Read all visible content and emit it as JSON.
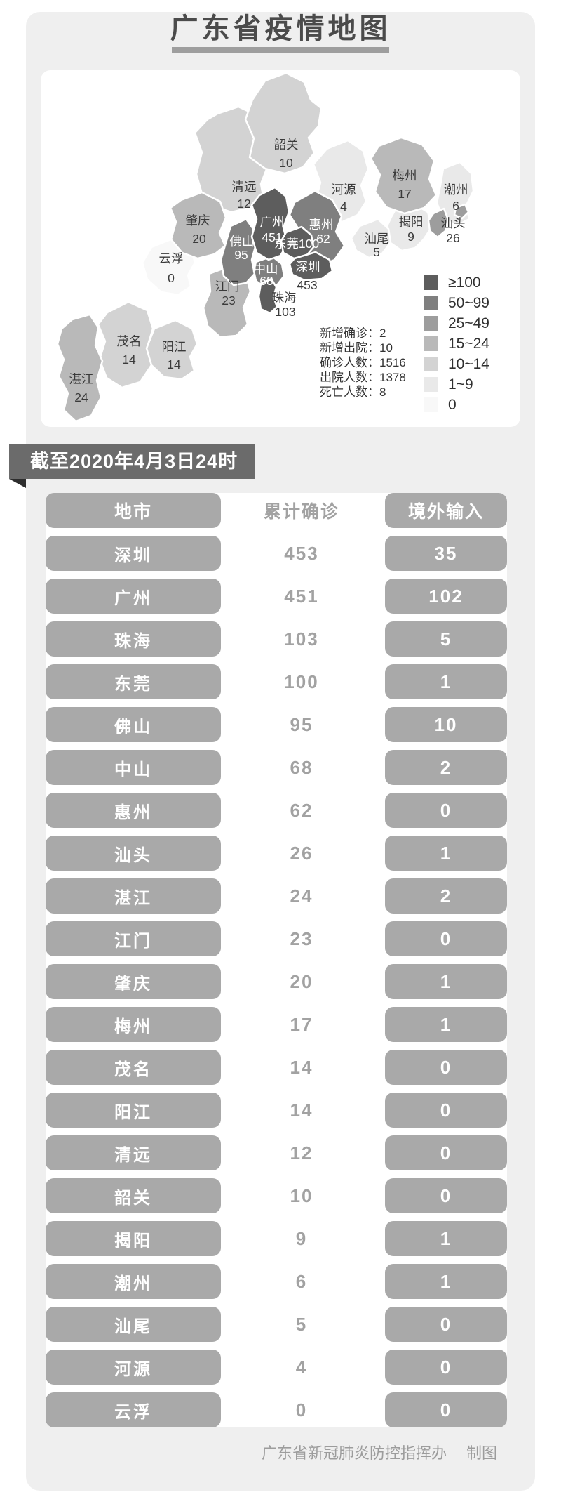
{
  "page": {
    "title": "广东省疫情地图",
    "footer_credit": "广东省新冠肺炎防控指挥办",
    "footer_suffix": "制图"
  },
  "banner": {
    "text": "截至2020年4月3日24时"
  },
  "map": {
    "stats_lines": [
      "新增确诊：2",
      "新增出院：10",
      "确诊人数：1516",
      "出院人数：1378",
      "死亡人数：8"
    ],
    "legend": [
      {
        "label": "≥100",
        "color": "#5d5d5d"
      },
      {
        "label": "50~99",
        "color": "#7f7f7f"
      },
      {
        "label": "25~49",
        "color": "#9d9d9d"
      },
      {
        "label": "15~24",
        "color": "#b9b9b9"
      },
      {
        "label": "10~14",
        "color": "#d3d3d3"
      },
      {
        "label": "1~9",
        "color": "#e9e9e9"
      },
      {
        "label": "0",
        "color": "#f8f8f8"
      }
    ],
    "regions": [
      {
        "name": "云浮",
        "value": "0",
        "bucket": 6
      },
      {
        "name": "河源",
        "value": "4",
        "bucket": 5
      },
      {
        "name": "潮州",
        "value": "6",
        "bucket": 5
      },
      {
        "name": "揭阳",
        "value": "9",
        "bucket": 5
      },
      {
        "name": "汕尾",
        "value": "5",
        "bucket": 5
      },
      {
        "name": "茂名",
        "value": "14",
        "bucket": 4
      },
      {
        "name": "阳江",
        "value": "14",
        "bucket": 4
      },
      {
        "name": "清远",
        "value": "12",
        "bucket": 4
      },
      {
        "name": "韶关",
        "value": "10",
        "bucket": 4
      },
      {
        "name": "湛江",
        "value": "24",
        "bucket": 3
      },
      {
        "name": "江门",
        "value": "23",
        "bucket": 3
      },
      {
        "name": "肇庆",
        "value": "20",
        "bucket": 3
      },
      {
        "name": "梅州",
        "value": "17",
        "bucket": 3
      },
      {
        "name": "汕头",
        "value": "26",
        "bucket": 2
      },
      {
        "name": "惠州",
        "value": "62",
        "bucket": 1
      },
      {
        "name": "佛山",
        "value": "95",
        "bucket": 1
      },
      {
        "name": "中山",
        "value": "68",
        "bucket": 1
      },
      {
        "name": "广州",
        "value": "451",
        "bucket": 0
      },
      {
        "name": "东莞",
        "value": "100",
        "bucket": 0
      },
      {
        "name": "深圳",
        "value": "453",
        "bucket": 0
      },
      {
        "name": "珠海",
        "value": "103",
        "bucket": 0
      }
    ]
  },
  "table": {
    "headers": [
      "地市",
      "累计确诊",
      "境外输入"
    ],
    "rows": [
      {
        "city": "深圳",
        "confirmed": "453",
        "imported": "35"
      },
      {
        "city": "广州",
        "confirmed": "451",
        "imported": "102"
      },
      {
        "city": "珠海",
        "confirmed": "103",
        "imported": "5"
      },
      {
        "city": "东莞",
        "confirmed": "100",
        "imported": "1"
      },
      {
        "city": "佛山",
        "confirmed": "95",
        "imported": "10"
      },
      {
        "city": "中山",
        "confirmed": "68",
        "imported": "2"
      },
      {
        "city": "惠州",
        "confirmed": "62",
        "imported": "0"
      },
      {
        "city": "汕头",
        "confirmed": "26",
        "imported": "1"
      },
      {
        "city": "湛江",
        "confirmed": "24",
        "imported": "2"
      },
      {
        "city": "江门",
        "confirmed": "23",
        "imported": "0"
      },
      {
        "city": "肇庆",
        "confirmed": "20",
        "imported": "1"
      },
      {
        "city": "梅州",
        "confirmed": "17",
        "imported": "1"
      },
      {
        "city": "茂名",
        "confirmed": "14",
        "imported": "0"
      },
      {
        "city": "阳江",
        "confirmed": "14",
        "imported": "0"
      },
      {
        "city": "清远",
        "confirmed": "12",
        "imported": "0"
      },
      {
        "city": "韶关",
        "confirmed": "10",
        "imported": "0"
      },
      {
        "city": "揭阳",
        "confirmed": "9",
        "imported": "1"
      },
      {
        "city": "潮州",
        "confirmed": "6",
        "imported": "1"
      },
      {
        "city": "汕尾",
        "confirmed": "5",
        "imported": "0"
      },
      {
        "city": "河源",
        "confirmed": "4",
        "imported": "0"
      },
      {
        "city": "云浮",
        "confirmed": "0",
        "imported": "0"
      }
    ]
  },
  "chart_data": [
    {
      "type": "heatmap",
      "title": "广东省疫情地图",
      "note": "choropleth of cumulative confirmed cases by city",
      "legend_position": "right",
      "legend_bins": [
        "≥100",
        "50~99",
        "25~49",
        "15~24",
        "10~14",
        "1~9",
        "0"
      ],
      "series": [
        {
          "name": "累计确诊",
          "values": [
            [
              "深圳",
              453
            ],
            [
              "广州",
              451
            ],
            [
              "珠海",
              103
            ],
            [
              "东莞",
              100
            ],
            [
              "佛山",
              95
            ],
            [
              "中山",
              68
            ],
            [
              "惠州",
              62
            ],
            [
              "汕头",
              26
            ],
            [
              "湛江",
              24
            ],
            [
              "江门",
              23
            ],
            [
              "肇庆",
              20
            ],
            [
              "梅州",
              17
            ],
            [
              "茂名",
              14
            ],
            [
              "阳江",
              14
            ],
            [
              "清远",
              12
            ],
            [
              "韶关",
              10
            ],
            [
              "揭阳",
              9
            ],
            [
              "潮州",
              6
            ],
            [
              "汕尾",
              5
            ],
            [
              "河源",
              4
            ],
            [
              "云浮",
              0
            ]
          ]
        }
      ],
      "annotations": [
        "新增确诊：2",
        "新增出院：10",
        "确诊人数：1516",
        "出院人数：1378",
        "死亡人数：8"
      ]
    },
    {
      "type": "table",
      "title": "截至2020年4月3日24时",
      "columns": [
        "地市",
        "累计确诊",
        "境外输入"
      ],
      "rows": [
        [
          "深圳",
          453,
          35
        ],
        [
          "广州",
          451,
          102
        ],
        [
          "珠海",
          103,
          5
        ],
        [
          "东莞",
          100,
          1
        ],
        [
          "佛山",
          95,
          10
        ],
        [
          "中山",
          68,
          2
        ],
        [
          "惠州",
          62,
          0
        ],
        [
          "汕头",
          26,
          1
        ],
        [
          "湛江",
          24,
          2
        ],
        [
          "江门",
          23,
          0
        ],
        [
          "肇庆",
          20,
          1
        ],
        [
          "梅州",
          17,
          1
        ],
        [
          "茂名",
          14,
          0
        ],
        [
          "阳江",
          14,
          0
        ],
        [
          "清远",
          12,
          0
        ],
        [
          "韶关",
          10,
          0
        ],
        [
          "揭阳",
          9,
          1
        ],
        [
          "潮州",
          6,
          1
        ],
        [
          "汕尾",
          5,
          0
        ],
        [
          "河源",
          4,
          0
        ],
        [
          "云浮",
          0,
          0
        ]
      ]
    }
  ]
}
